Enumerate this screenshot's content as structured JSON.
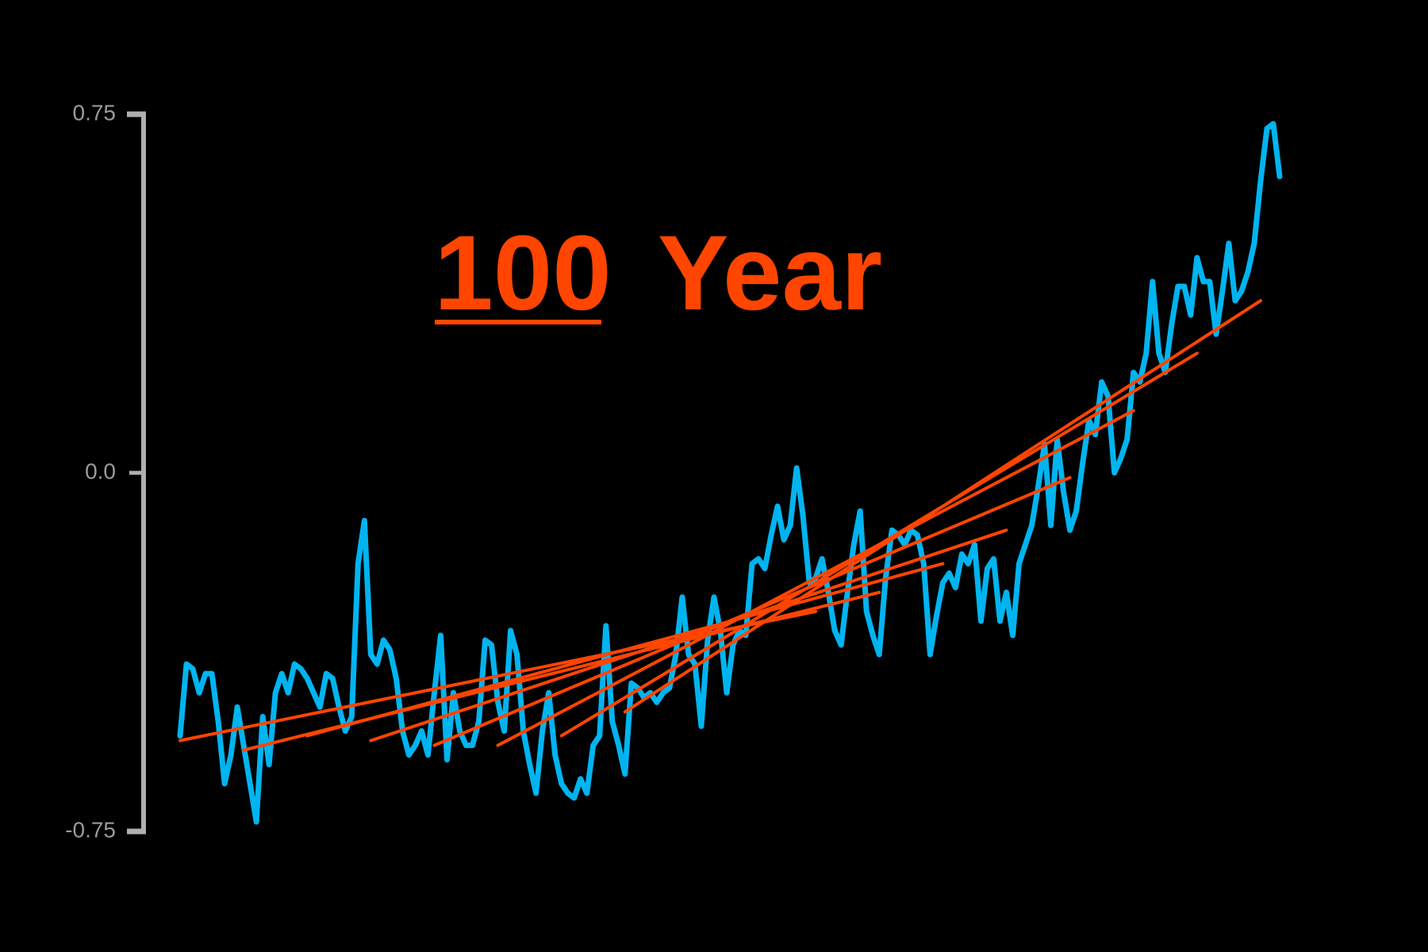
{
  "chart_data": {
    "type": "line",
    "title_number": "100",
    "title": "Year",
    "ylim": [
      -0.75,
      0.75
    ],
    "yticks": [
      -0.75,
      {
        "value": 0,
        "label": "0.0"
      },
      0.75
    ],
    "series": [
      {
        "color": "#00b4f0",
        "values": [
          -0.55,
          -0.4,
          -0.41,
          -0.46,
          -0.42,
          -0.42,
          -0.52,
          -0.65,
          -0.59,
          -0.49,
          -0.57,
          -0.65,
          -0.73,
          -0.51,
          -0.61,
          -0.46,
          -0.42,
          -0.46,
          -0.4,
          -0.41,
          -0.43,
          -0.46,
          -0.49,
          -0.42,
          -0.43,
          -0.49,
          -0.54,
          -0.51,
          -0.19,
          -0.1,
          -0.38,
          -0.4,
          -0.35,
          -0.37,
          -0.43,
          -0.54,
          -0.59,
          -0.57,
          -0.54,
          -0.59,
          -0.46,
          -0.34,
          -0.6,
          -0.46,
          -0.54,
          -0.57,
          -0.57,
          -0.52,
          -0.35,
          -0.36,
          -0.48,
          -0.54,
          -0.33,
          -0.38,
          -0.54,
          -0.61,
          -0.67,
          -0.54,
          -0.46,
          -0.59,
          -0.65,
          -0.67,
          -0.68,
          -0.64,
          -0.67,
          -0.57,
          -0.55,
          -0.32,
          -0.52,
          -0.57,
          -0.63,
          -0.44,
          -0.45,
          -0.47,
          -0.46,
          -0.48,
          -0.46,
          -0.45,
          -0.38,
          -0.26,
          -0.38,
          -0.4,
          -0.53,
          -0.35,
          -0.26,
          -0.33,
          -0.46,
          -0.36,
          -0.33,
          -0.34,
          -0.19,
          -0.18,
          -0.2,
          -0.13,
          -0.07,
          -0.14,
          -0.11,
          0.01,
          -0.09,
          -0.23,
          -0.22,
          -0.18,
          -0.25,
          -0.33,
          -0.36,
          -0.25,
          -0.15,
          -0.08,
          -0.29,
          -0.34,
          -0.38,
          -0.22,
          -0.12,
          -0.13,
          -0.15,
          -0.12,
          -0.13,
          -0.19,
          -0.38,
          -0.3,
          -0.23,
          -0.21,
          -0.24,
          -0.17,
          -0.19,
          -0.15,
          -0.31,
          -0.2,
          -0.18,
          -0.31,
          -0.25,
          -0.34,
          -0.19,
          -0.15,
          -0.11,
          -0.03,
          0.06,
          -0.11,
          0.07,
          -0.04,
          -0.12,
          -0.08,
          0.02,
          0.11,
          0.08,
          0.19,
          0.16,
          0.0,
          0.03,
          0.07,
          0.21,
          0.19,
          0.25,
          0.4,
          0.25,
          0.21,
          0.31,
          0.39,
          0.39,
          0.33,
          0.45,
          0.4,
          0.4,
          0.29,
          0.38,
          0.48,
          0.36,
          0.38,
          0.42,
          0.48,
          0.61,
          0.72,
          0.73,
          0.62
        ]
      }
    ],
    "trend_color": "#ff4500",
    "trends": [
      {
        "x": [
          0,
          100
        ],
        "values": [
          -0.56,
          -0.29
        ]
      },
      {
        "x": [
          10,
          110
        ],
        "values": [
          -0.58,
          -0.25
        ]
      },
      {
        "x": [
          20,
          120
        ],
        "values": [
          -0.55,
          -0.19
        ]
      },
      {
        "x": [
          30,
          130
        ],
        "values": [
          -0.56,
          -0.12
        ]
      },
      {
        "x": [
          40,
          140
        ],
        "values": [
          -0.57,
          -0.01
        ]
      },
      {
        "x": [
          50,
          150
        ],
        "values": [
          -0.57,
          0.13
        ]
      },
      {
        "x": [
          60,
          160
        ],
        "values": [
          -0.55,
          0.25
        ]
      },
      {
        "x": [
          70,
          170
        ],
        "values": [
          -0.5,
          0.36
        ]
      }
    ]
  }
}
